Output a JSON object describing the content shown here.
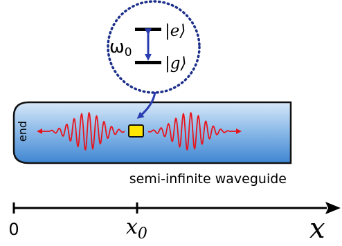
{
  "atom": {
    "frequency_symbol": "ω",
    "frequency_subscript": "0",
    "excited_state": "|e⟩",
    "ground_state": "|g⟩"
  },
  "waveguide": {
    "end_label": "end",
    "caption": "semi-infinite waveguide"
  },
  "axis": {
    "origin_label": "0",
    "position_label": "x",
    "position_subscript": "0",
    "axis_label": "x"
  },
  "colors": {
    "waveguide_light": "#cfe3f6",
    "waveguide_dark": "#4a8fd6",
    "wave": "#e8141c",
    "dotted_circle": "#1c2f8a",
    "transition_arrow": "#2a3db0",
    "atom_fill": "#ffe600"
  }
}
